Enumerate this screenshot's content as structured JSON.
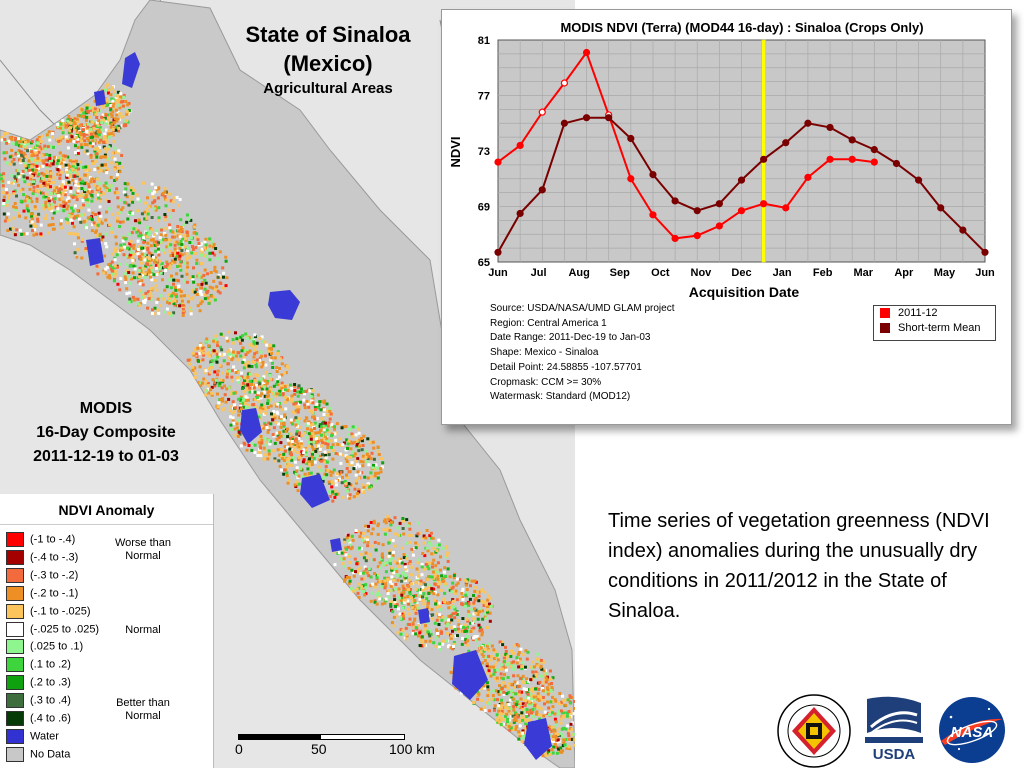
{
  "map": {
    "title_line1": "State of Sinaloa",
    "title_line2": "(Mexico)",
    "subtitle": "Agricultural Areas",
    "composite_line1": "MODIS",
    "composite_line2": "16-Day Composite",
    "composite_line3": "2011-12-19 to 01-03",
    "scale": {
      "labels": [
        "0",
        "50",
        "100 km"
      ]
    },
    "colors": {
      "land": "#c9c9c9",
      "water": "#3a3ad6",
      "ocean": "#e6e6e6"
    }
  },
  "legend": {
    "title": "NDVI Anomaly",
    "items": [
      {
        "label": "(-1 to -.4)",
        "color": "#ff0000"
      },
      {
        "label": "(-.4 to -.3)",
        "color": "#a50000"
      },
      {
        "label": "(-.3 to -.2)",
        "color": "#f36b3c"
      },
      {
        "label": "(-.2 to -.1)",
        "color": "#ed8f25"
      },
      {
        "label": "(-.1 to -.025)",
        "color": "#fbc55b"
      },
      {
        "label": "(-.025 to .025)",
        "color": "#ffffff"
      },
      {
        "label": "(.025 to .1)",
        "color": "#8ff58f"
      },
      {
        "label": "(.1 to .2)",
        "color": "#3dd43d"
      },
      {
        "label": "(.2 to .3)",
        "color": "#0ea30e"
      },
      {
        "label": "(.3 to .4)",
        "color": "#3e6e3e"
      },
      {
        "label": "(.4 to .6)",
        "color": "#063a06"
      },
      {
        "label": "Water",
        "color": "#3232d2"
      },
      {
        "label": "No Data",
        "color": "#c8c8c8"
      }
    ],
    "groups": [
      {
        "line1": "Worse than",
        "line2": "Normal"
      },
      {
        "line1": "Normal",
        "line2": ""
      },
      {
        "line1": "Better than",
        "line2": "Normal"
      }
    ]
  },
  "chart_data": {
    "type": "line",
    "title": "MODIS NDVI (Terra) (MOD44 16-day) : Sinaloa (Crops Only)",
    "xlabel": "Acquisition Date",
    "ylabel": "NDVI",
    "ylim": [
      65,
      81
    ],
    "yticks": [
      "65",
      "69",
      "73",
      "77",
      "81"
    ],
    "xticks": [
      "Jun",
      "Jul",
      "Aug",
      "Sep",
      "Oct",
      "Nov",
      "Dec",
      "Jan",
      "Feb",
      "Mar",
      "Apr",
      "May",
      "Jun"
    ],
    "grid": true,
    "legend_position": "bottom-right",
    "highlight_period": "Jan",
    "series": [
      {
        "name": "2011-12",
        "color": "#ff0000",
        "points": [
          {
            "i": 0,
            "y": 72.2
          },
          {
            "i": 1,
            "y": 73.4
          },
          {
            "i": 2,
            "y": 75.8
          },
          {
            "i": 3,
            "y": 77.9
          },
          {
            "i": 4,
            "y": 80.1
          },
          {
            "i": 5,
            "y": 75.6
          },
          {
            "i": 6,
            "y": 71.0
          },
          {
            "i": 7,
            "y": 68.4
          },
          {
            "i": 8,
            "y": 66.7
          },
          {
            "i": 9,
            "y": 66.9
          },
          {
            "i": 10,
            "y": 67.6
          },
          {
            "i": 11,
            "y": 68.7
          },
          {
            "i": 12,
            "y": 69.2
          },
          {
            "i": 13,
            "y": 68.9
          },
          {
            "i": 14,
            "y": 71.1
          },
          {
            "i": 15,
            "y": 72.4
          },
          {
            "i": 16,
            "y": 72.4
          },
          {
            "i": 17,
            "y": 72.2
          }
        ],
        "hollow_points": [
          2,
          3,
          5
        ]
      },
      {
        "name": "Short-term Mean",
        "color": "#7a0000",
        "points": [
          {
            "i": 0,
            "y": 65.7
          },
          {
            "i": 1,
            "y": 68.5
          },
          {
            "i": 2,
            "y": 70.2
          },
          {
            "i": 3,
            "y": 75.0
          },
          {
            "i": 4,
            "y": 75.4
          },
          {
            "i": 5,
            "y": 75.4
          },
          {
            "i": 6,
            "y": 73.9
          },
          {
            "i": 7,
            "y": 71.3
          },
          {
            "i": 8,
            "y": 69.4
          },
          {
            "i": 9,
            "y": 68.7
          },
          {
            "i": 10,
            "y": 69.2
          },
          {
            "i": 11,
            "y": 70.9
          },
          {
            "i": 12,
            "y": 72.4
          },
          {
            "i": 13,
            "y": 73.6
          },
          {
            "i": 14,
            "y": 75.0
          },
          {
            "i": 15,
            "y": 74.7
          },
          {
            "i": 16,
            "y": 73.8
          },
          {
            "i": 17,
            "y": 73.1
          },
          {
            "i": 18,
            "y": 72.1
          },
          {
            "i": 19,
            "y": 70.9
          },
          {
            "i": 20,
            "y": 68.9
          },
          {
            "i": 21,
            "y": 67.3
          },
          {
            "i": 22,
            "y": 65.7
          }
        ]
      }
    ],
    "metadata": [
      "Source: USDA/NASA/UMD GLAM project",
      "Region: Central America 1",
      "Date Range: 2011-Dec-19 to Jan-03",
      "Shape: Mexico - Sinaloa",
      "Detail Point: 24.58855 -107.57701",
      "Cropmask: CCM >= 30%",
      "Watermask: Standard (MOD12)"
    ]
  },
  "description": "Time series of vegetation greenness (NDVI index) anomalies during the unusually dry conditions in 2011/2012 in the State of Sinaloa.",
  "logos": [
    {
      "name": "university-of-maryland-seal",
      "text": "UNIVERSITY OF MARYLAND 1856"
    },
    {
      "name": "usda-fas-logo",
      "text": "USDA"
    },
    {
      "name": "nasa-logo",
      "text": "NASA"
    }
  ]
}
